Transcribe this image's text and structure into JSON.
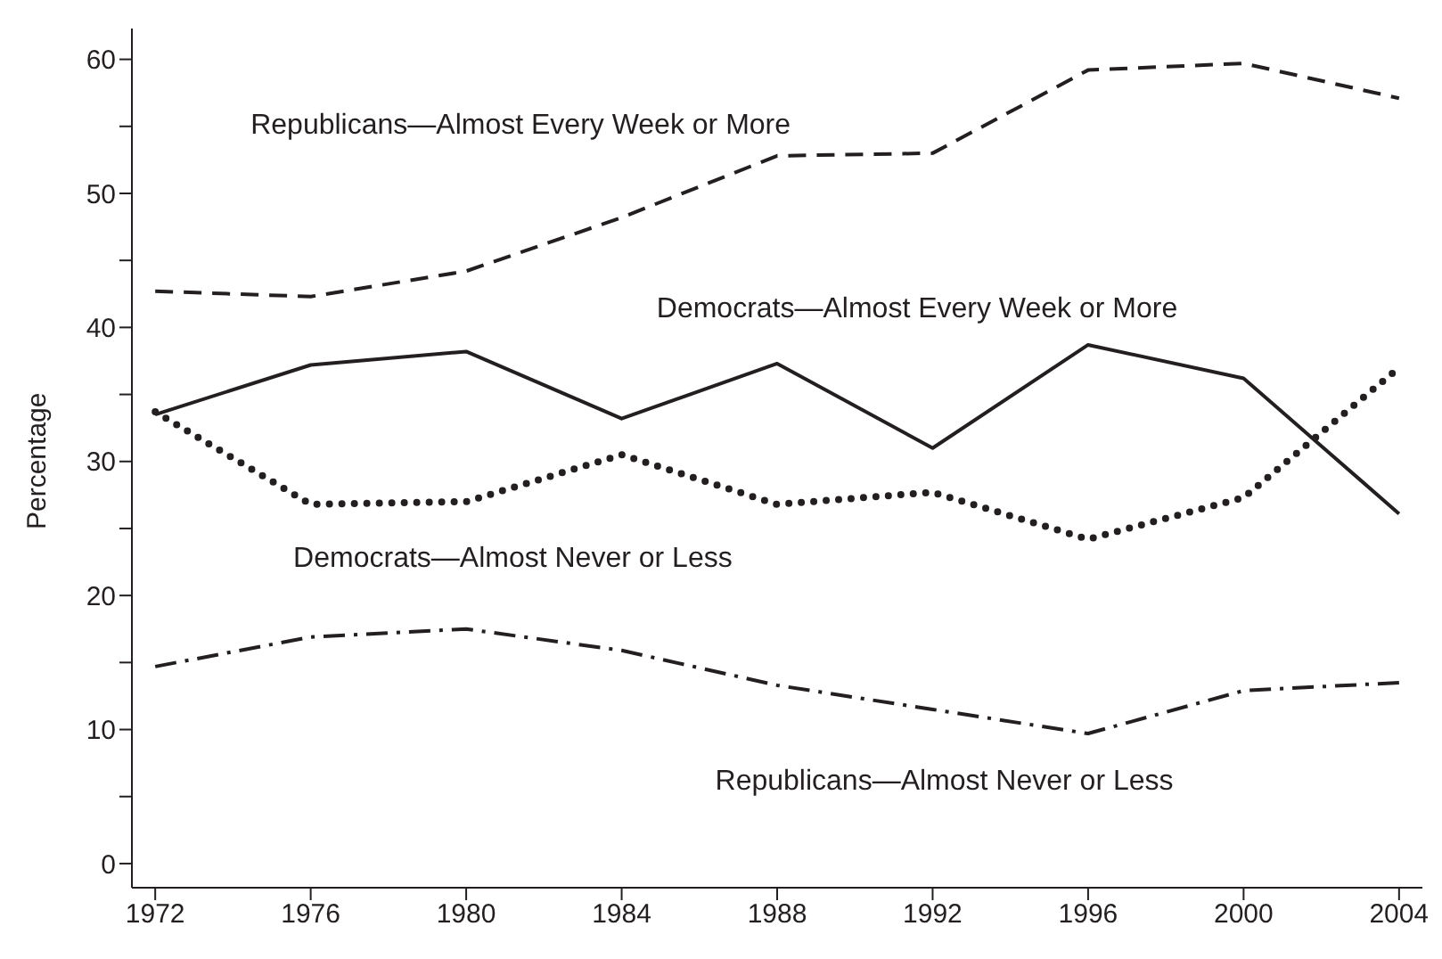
{
  "chart_data": {
    "type": "line",
    "ylabel": "Percentage",
    "x": [
      1972,
      1976,
      1980,
      1984,
      1988,
      1992,
      1996,
      2000,
      2004
    ],
    "xlim": [
      1971.4,
      2004.6
    ],
    "xticks": [
      1972,
      1976,
      1980,
      1984,
      1988,
      1992,
      1996,
      2000,
      2004
    ],
    "ylim": [
      -1.8,
      62.3
    ],
    "yticks": [
      0,
      {
        "value": 5,
        "label": null
      },
      10,
      {
        "value": 15,
        "label": null
      },
      20,
      {
        "value": 25,
        "label": null
      },
      30,
      {
        "value": 35,
        "label": null
      },
      40,
      {
        "value": 45,
        "label": null
      },
      50,
      {
        "value": 55,
        "label": null
      },
      60
    ],
    "grid": false,
    "legend": false,
    "marker": "none",
    "series": [
      {
        "name": "Republicans—Almost Every Week or More",
        "color": "#231f20",
        "line_style": "dashed",
        "values": [
          42.7,
          42.3,
          44.2,
          48.2,
          52.8,
          53.0,
          59.2,
          59.7,
          57.1
        ]
      },
      {
        "name": "Democrats—Almost Every Week or More",
        "color": "#231f20",
        "line_style": "solid",
        "values": [
          33.5,
          37.2,
          38.2,
          33.2,
          37.3,
          31.0,
          38.7,
          36.2,
          26.1
        ]
      },
      {
        "name": "Democrats—Almost Never or Less",
        "color": "#231f20",
        "line_style": "dotted",
        "values": [
          33.7,
          26.8,
          27.0,
          30.5,
          26.8,
          27.7,
          24.2,
          27.3,
          37.0
        ]
      },
      {
        "name": "Republicans—Almost Never or Less",
        "color": "#231f20",
        "line_style": "dashdot",
        "values": [
          14.7,
          16.9,
          17.5,
          15.9,
          13.3,
          11.5,
          9.7,
          12.9,
          13.5
        ]
      }
    ]
  }
}
